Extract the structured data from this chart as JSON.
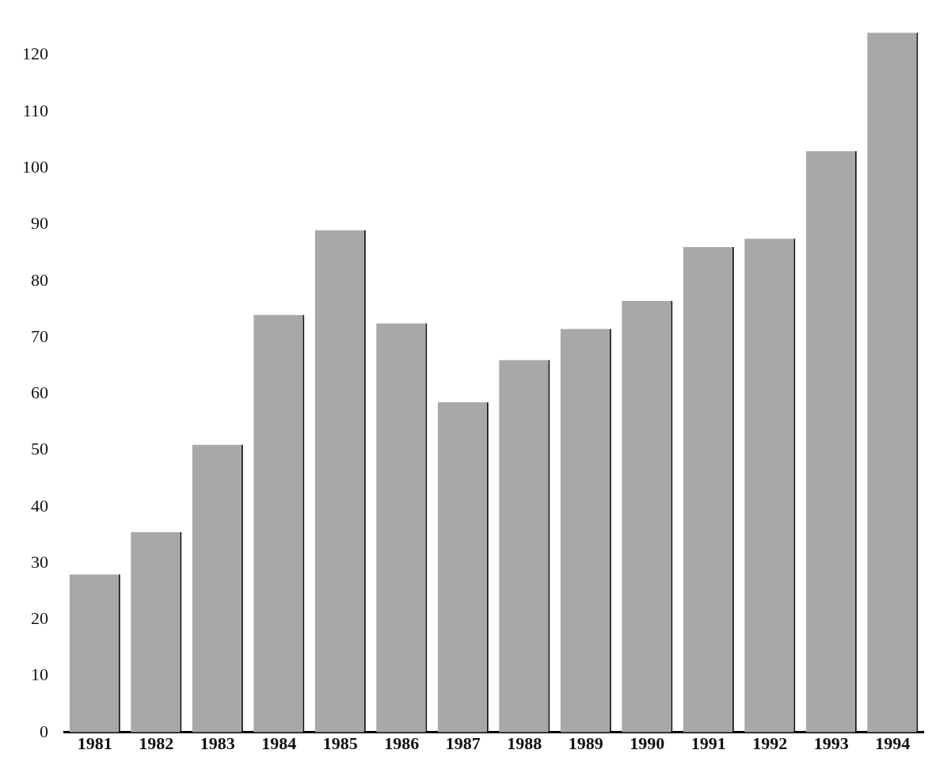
{
  "chart_data": {
    "type": "bar",
    "categories": [
      "1981",
      "1982",
      "1983",
      "1984",
      "1985",
      "1986",
      "1987",
      "1988",
      "1989",
      "1990",
      "1991",
      "1992",
      "1993",
      "1994"
    ],
    "values": [
      28,
      35.5,
      51,
      74,
      89,
      72.5,
      58.5,
      66,
      71.5,
      76.5,
      86,
      87.5,
      103,
      124
    ],
    "color": "#a8a8a8",
    "ylim": [
      0,
      124
    ],
    "yticks": [
      0,
      10,
      20,
      30,
      40,
      50,
      60,
      70,
      80,
      90,
      100,
      110,
      120
    ],
    "grid": false
  }
}
